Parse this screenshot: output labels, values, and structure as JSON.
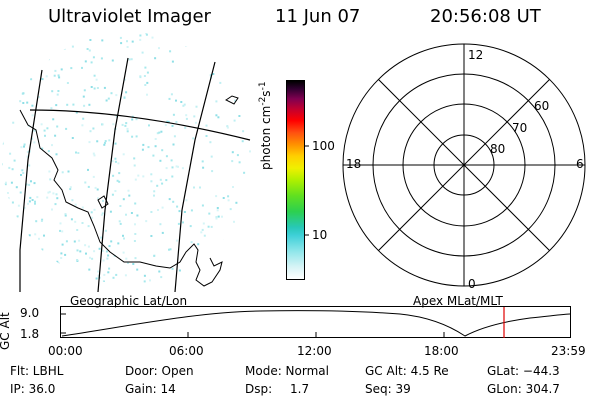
{
  "header": {
    "title": "Ultraviolet Imager",
    "date": "11 Jun 07",
    "time": "20:56:08 UT"
  },
  "colorbar": {
    "label": "photon cm",
    "unit_exp1": "-2",
    "unit_s": "s",
    "unit_exp2": "-1",
    "ticks": [
      "100",
      "10"
    ]
  },
  "polar": {
    "clock_top": "12",
    "clock_left": "18",
    "clock_right": "6",
    "clock_bottom": "0",
    "lat_labels": [
      "60",
      "70",
      "80"
    ]
  },
  "panel_labels": {
    "left": "Geographic Lat/Lon",
    "right": "Apex MLat/MLT"
  },
  "orbit": {
    "ylabel": "GC Alt",
    "ytick_top": "9.0",
    "ytick_bottom": "1.8",
    "xticks": [
      "00:00",
      "06:00",
      "12:00",
      "18:00",
      "23:59"
    ]
  },
  "info": {
    "flt": "Flt: LBHL",
    "ip": "IP: 36.0",
    "door": "Door: Open",
    "gain": "Gain: 14",
    "mode": "Mode: Normal",
    "dsp_label": "Dsp:",
    "dsp_value": "1.7",
    "gc_alt": "GC Alt: 4.5 Re",
    "seq": "Seq: 39",
    "glat": "GLat: −44.3",
    "glon": "GLon: 304.7"
  }
}
